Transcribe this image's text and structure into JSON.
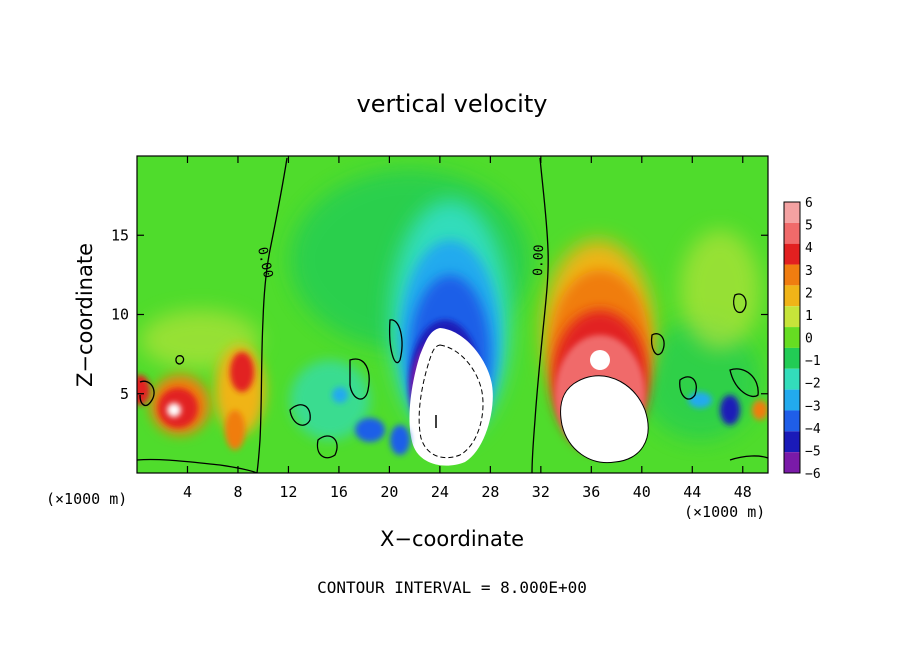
{
  "chart_data": {
    "type": "heatmap",
    "title": "vertical velocity",
    "xlabel": "X−coordinate",
    "ylabel": "Z−coordinate",
    "x_unit_left": "(×1000 m)",
    "x_unit_right": "(×1000 m)",
    "xlim": [
      0,
      50
    ],
    "ylim": [
      0,
      20
    ],
    "xticks": [
      4,
      8,
      12,
      16,
      20,
      24,
      28,
      32,
      36,
      40,
      44,
      48
    ],
    "yticks": [
      5,
      10,
      15
    ],
    "colorbar": {
      "levels": [
        6,
        5,
        4,
        3,
        2,
        1,
        0,
        -1,
        -2,
        -3,
        -4,
        -5,
        -6
      ],
      "labels": [
        "6",
        "5",
        "4",
        "3",
        "2",
        "1",
        "0",
        "−1",
        "−2",
        "−3",
        "−4",
        "−5",
        "−6"
      ],
      "colors": [
        "#f4a2a2",
        "#f06a6a",
        "#e22020",
        "#f07d10",
        "#f0b418",
        "#c6e43a",
        "#66dd22",
        "#22cc55",
        "#33ddbb",
        "#22aaee",
        "#1f5ee8",
        "#1a1ab8",
        "#7a1aa8"
      ]
    },
    "contour_labels": [
      "0.00",
      "0.00"
    ],
    "features": [
      {
        "type": "updraft",
        "x": 36,
        "z": 4.5,
        "peak": "> 6"
      },
      {
        "type": "downdraft",
        "x": 24,
        "z": 4.5,
        "peak": "< -6"
      },
      {
        "type": "updraft",
        "x": 3,
        "z": 4,
        "peak": "5"
      },
      {
        "type": "updraft",
        "x": 8,
        "z": 6,
        "peak": "4"
      }
    ],
    "footnote": "CONTOUR INTERVAL = 8.000E+00"
  },
  "colors": {
    "background": "#ffffff",
    "field_base": "#4fdc2c",
    "zero_level": "#22cc55"
  }
}
